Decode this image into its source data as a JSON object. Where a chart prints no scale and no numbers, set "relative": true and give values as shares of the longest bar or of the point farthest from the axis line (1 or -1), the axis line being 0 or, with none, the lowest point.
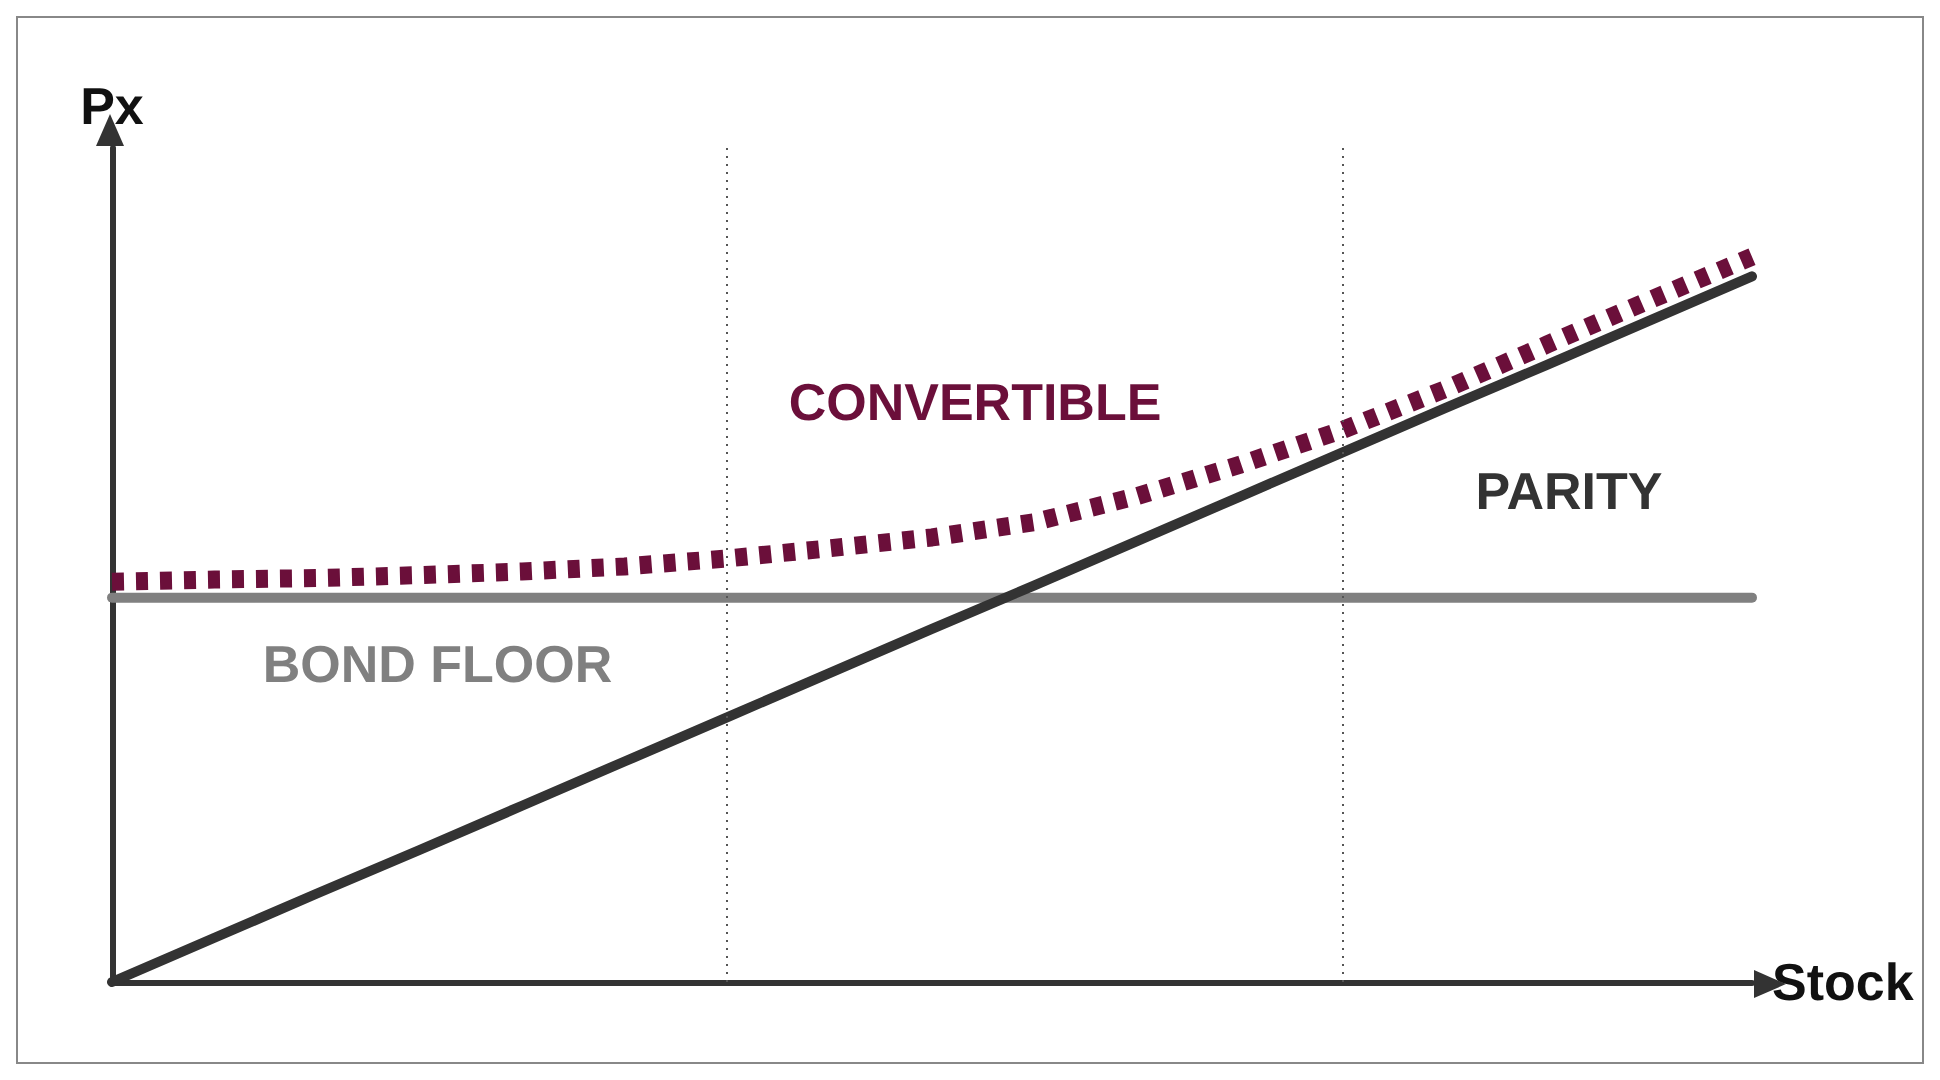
{
  "chart_data": {
    "type": "line",
    "relative": true,
    "xlabel": "Stock",
    "ylabel": "Px",
    "categories": [
      null,
      null,
      null,
      null,
      null,
      null,
      null,
      null,
      null,
      null,
      null,
      null,
      null,
      null,
      null,
      null,
      null
    ],
    "grid": false,
    "legend": false,
    "marker": "none",
    "series": [
      {
        "name": "BOND FLOOR",
        "color": "#808080",
        "line_style": "solid",
        "values": [
          0.53,
          0.53,
          0.53,
          0.53,
          0.53,
          0.53,
          0.53,
          0.53,
          0.53,
          0.53,
          0.53,
          0.53,
          0.53,
          0.53,
          0.53,
          0.53,
          0.53
        ]
      },
      {
        "name": "PARITY",
        "color": "#333333",
        "line_style": "solid",
        "values": [
          0,
          0.061,
          0.122,
          0.182,
          0.243,
          0.304,
          0.365,
          0.426,
          0.487,
          0.547,
          0.608,
          0.669,
          0.73,
          0.791,
          0.851,
          0.912,
          0.973
        ]
      },
      {
        "name": "CONVERTIBLE",
        "color": "#6b0f3a",
        "line_style": "dotted",
        "values": [
          0.552,
          0.555,
          0.557,
          0.561,
          0.566,
          0.573,
          0.584,
          0.598,
          0.613,
          0.634,
          0.67,
          0.713,
          0.761,
          0.817,
          0.879,
          0.94,
          1.0
        ]
      }
    ]
  }
}
